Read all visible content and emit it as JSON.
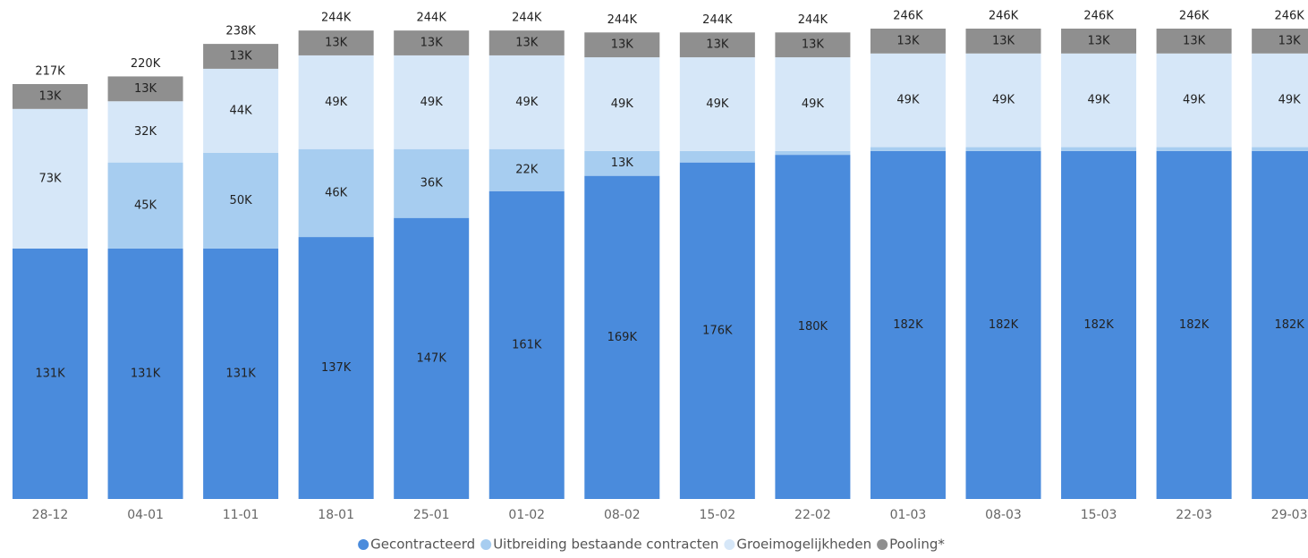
{
  "chart_data": {
    "type": "stacked-bar",
    "categories": [
      "28-12",
      "04-01",
      "11-01",
      "18-01",
      "25-01",
      "01-02",
      "08-02",
      "15-02",
      "22-02",
      "01-03",
      "08-03",
      "15-03",
      "22-03",
      "29-03"
    ],
    "series": [
      {
        "name": "Gecontracteerd",
        "color": "#4a8bdc",
        "values": [
          131000,
          131000,
          131000,
          137000,
          147000,
          161000,
          169000,
          176000,
          180000,
          182000,
          182000,
          182000,
          182000,
          182000
        ],
        "value_labels": [
          "131K",
          "131K",
          "131K",
          "137K",
          "147K",
          "161K",
          "169K",
          "176K",
          "180K",
          "182K",
          "182K",
          "182K",
          "182K",
          "182K"
        ]
      },
      {
        "name": "Uitbreiding bestaande contracten",
        "color": "#a7cdf0",
        "values": [
          0,
          45000,
          50000,
          46000,
          36000,
          22000,
          13000,
          6000,
          2000,
          2000,
          2000,
          2000,
          2000,
          2000
        ],
        "value_labels": [
          null,
          "45K",
          "50K",
          "46K",
          "36K",
          "22K",
          "13K",
          null,
          null,
          null,
          null,
          null,
          null,
          null
        ]
      },
      {
        "name": "Groeimogelijkheden",
        "color": "#d6e7f8",
        "values": [
          73000,
          32000,
          44000,
          49000,
          49000,
          49000,
          49000,
          49000,
          49000,
          49000,
          49000,
          49000,
          49000,
          49000
        ],
        "value_labels": [
          "73K",
          "32K",
          "44K",
          "49K",
          "49K",
          "49K",
          "49K",
          "49K",
          "49K",
          "49K",
          "49K",
          "49K",
          "49K",
          "49K"
        ]
      },
      {
        "name": "Pooling*",
        "color": "#8f8f8f",
        "values": [
          13000,
          13000,
          13000,
          13000,
          13000,
          13000,
          13000,
          13000,
          13000,
          13000,
          13000,
          13000,
          13000,
          13000
        ],
        "value_labels": [
          "13K",
          "13K",
          "13K",
          "13K",
          "13K",
          "13K",
          "13K",
          "13K",
          "13K",
          "13K",
          "13K",
          "13K",
          "13K",
          "13K"
        ]
      }
    ],
    "totals": [
      217000,
      220000,
      238000,
      244000,
      244000,
      244000,
      244000,
      244000,
      244000,
      246000,
      246000,
      246000,
      246000,
      246000
    ],
    "total_labels": [
      "217K",
      "220K",
      "238K",
      "244K",
      "244K",
      "244K",
      "244K",
      "244K",
      "244K",
      "246K",
      "246K",
      "246K",
      "246K",
      "246K"
    ]
  }
}
